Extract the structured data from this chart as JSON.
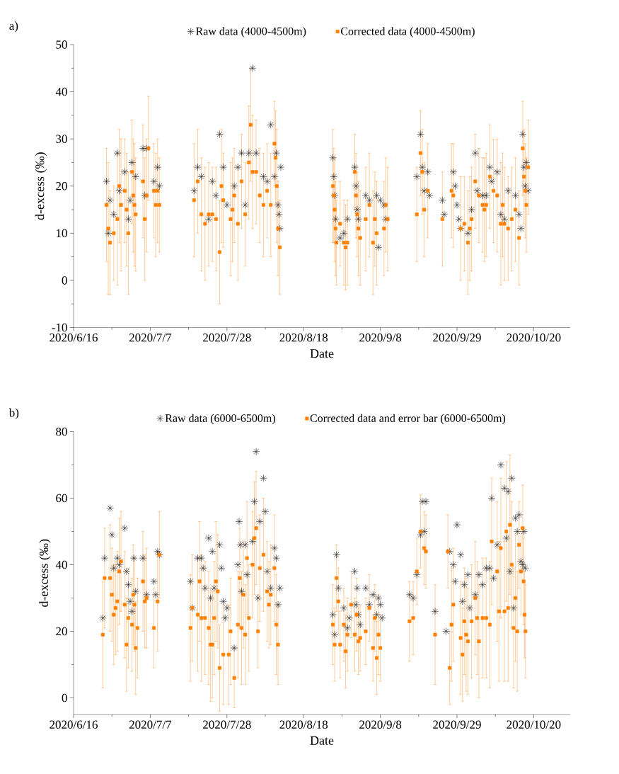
{
  "chart_data": [
    {
      "type": "scatter",
      "title": "a)",
      "xlabel": "Date",
      "ylabel": "d-excess (‰)",
      "legend": "top",
      "xlim": [
        "2020-06-16",
        "2020-10-30"
      ],
      "xticks": [
        {
          "value": "2020-06-16",
          "label": "2020/6/16"
        },
        {
          "value": "2020-07-07",
          "label": "2020/7/7"
        },
        {
          "value": "2020-07-28",
          "label": "2020/7/28"
        },
        {
          "value": "2020-08-18",
          "label": "2020/8/18"
        },
        {
          "value": "2020-09-08",
          "label": "2020/9/8"
        },
        {
          "value": "2020-09-29",
          "label": "2020/9/29"
        },
        {
          "value": "2020-10-20",
          "label": "2020/10/20"
        }
      ],
      "ylim": [
        -10,
        50
      ],
      "yticks": [
        -10,
        0,
        10,
        20,
        30,
        40,
        50
      ],
      "series": [
        {
          "name": "Raw data (4000-4500m)",
          "color": "#1a1a1a",
          "marker": "cross",
          "x": [
            "2020-06-25",
            "2020-06-25T12:00",
            "2020-06-26",
            "2020-06-27",
            "2020-06-28",
            "2020-06-28T12:00",
            "2020-06-30",
            "2020-07-01",
            "2020-07-01T12:00",
            "2020-07-02",
            "2020-07-03",
            "2020-07-05",
            "2020-07-05T12:00",
            "2020-07-06",
            "2020-07-08",
            "2020-07-09",
            "2020-07-09T12:00",
            "2020-07-19",
            "2020-07-20",
            "2020-07-21",
            "2020-07-23",
            "2020-07-24",
            "2020-07-25",
            "2020-07-26",
            "2020-07-27",
            "2020-07-28",
            "2020-07-30",
            "2020-07-31",
            "2020-08-01",
            "2020-08-02",
            "2020-08-03",
            "2020-08-04",
            "2020-08-05",
            "2020-08-07",
            "2020-08-08",
            "2020-08-09",
            "2020-08-10",
            "2020-08-10T12:00",
            "2020-08-11",
            "2020-08-11T06:00",
            "2020-08-11T12:00",
            "2020-08-11T18:00",
            "2020-08-26",
            "2020-08-26T06:00",
            "2020-08-26T12:00",
            "2020-08-26T18:00",
            "2020-08-28",
            "2020-08-29",
            "2020-08-30",
            "2020-09-01",
            "2020-09-01T08:00",
            "2020-09-01T16:00",
            "2020-09-02",
            "2020-09-04",
            "2020-09-05",
            "2020-09-07",
            "2020-09-07T12:00",
            "2020-09-08",
            "2020-09-09",
            "2020-09-09T12:00",
            "2020-09-18",
            "2020-09-19",
            "2020-09-19T12:00",
            "2020-09-20",
            "2020-09-21",
            "2020-09-21T12:00",
            "2020-09-25",
            "2020-09-25T12:00",
            "2020-09-28",
            "2020-09-28T12:00",
            "2020-09-29",
            "2020-09-29T12:00",
            "2020-09-30",
            "2020-10-02",
            "2020-10-03",
            "2020-10-04",
            "2020-10-04T12:00",
            "2020-10-06",
            "2020-10-07",
            "2020-10-08",
            "2020-10-08T12:00",
            "2020-10-10",
            "2020-10-11",
            "2020-10-12",
            "2020-10-13",
            "2020-10-15",
            "2020-10-16",
            "2020-10-16T12:00",
            "2020-10-17",
            "2020-10-17T08:00",
            "2020-10-17T16:00",
            "2020-10-18",
            "2020-10-18T12:00"
          ],
          "values": [
            21,
            10,
            17,
            14,
            27,
            19,
            23,
            13,
            17,
            25,
            22,
            28,
            18,
            28,
            21,
            24,
            20,
            19,
            24,
            22,
            13,
            21,
            18,
            31,
            24,
            16,
            20,
            24,
            27,
            16,
            27,
            45,
            27,
            22,
            21,
            33,
            22,
            27,
            16,
            14,
            11,
            24,
            26,
            22,
            18,
            13,
            9,
            10,
            13,
            24,
            20,
            15,
            13,
            18,
            17,
            18,
            7,
            17,
            16,
            13,
            22,
            31,
            24,
            19,
            23,
            18,
            17,
            14,
            23,
            20,
            16,
            13,
            11,
            10,
            15,
            27,
            19,
            18,
            18,
            24,
            21,
            23,
            14,
            13,
            19,
            18,
            14,
            11,
            31,
            24,
            20,
            25,
            19
          ]
        },
        {
          "name": "Corrected data (4000-4500m)",
          "color": "#ff7f00",
          "marker": "square",
          "x": [
            "2020-06-25",
            "2020-06-25T12:00",
            "2020-06-26",
            "2020-06-27",
            "2020-06-28",
            "2020-06-28T12:00",
            "2020-06-29",
            "2020-06-30",
            "2020-06-30T12:00",
            "2020-07-01",
            "2020-07-02",
            "2020-07-02T08:00",
            "2020-07-02T16:00",
            "2020-07-03",
            "2020-07-05",
            "2020-07-05T12:00",
            "2020-07-06",
            "2020-07-06T12:00",
            "2020-07-08",
            "2020-07-08T12:00",
            "2020-07-09",
            "2020-07-09T12:00",
            "2020-07-19",
            "2020-07-20",
            "2020-07-21",
            "2020-07-22",
            "2020-07-23",
            "2020-07-24",
            "2020-07-25",
            "2020-07-26",
            "2020-07-26T12:00",
            "2020-07-27",
            "2020-07-29",
            "2020-07-29T12:00",
            "2020-07-30",
            "2020-07-31",
            "2020-08-01",
            "2020-08-02",
            "2020-08-03",
            "2020-08-03T12:00",
            "2020-08-04",
            "2020-08-05",
            "2020-08-06",
            "2020-08-07",
            "2020-08-08",
            "2020-08-09",
            "2020-08-10",
            "2020-08-10T08:00",
            "2020-08-10T16:00",
            "2020-08-11",
            "2020-08-11T12:00",
            "2020-08-26",
            "2020-08-26T06:00",
            "2020-08-26T12:00",
            "2020-08-26T18:00",
            "2020-08-27",
            "2020-08-28",
            "2020-08-29",
            "2020-08-29T12:00",
            "2020-08-30",
            "2020-09-01",
            "2020-09-01T08:00",
            "2020-09-01T16:00",
            "2020-09-02",
            "2020-09-02T12:00",
            "2020-09-04",
            "2020-09-05",
            "2020-09-06",
            "2020-09-06T12:00",
            "2020-09-07",
            "2020-09-09",
            "2020-09-09T12:00",
            "2020-09-10",
            "2020-09-18",
            "2020-09-19",
            "2020-09-19T12:00",
            "2020-09-20",
            "2020-09-21",
            "2020-09-25",
            "2020-09-27T12:00",
            "2020-09-28",
            "2020-09-30",
            "2020-10-01",
            "2020-10-02",
            "2020-10-02T12:00",
            "2020-10-03",
            "2020-10-04",
            "2020-10-05",
            "2020-10-06",
            "2020-10-06T12:00",
            "2020-10-07",
            "2020-10-08",
            "2020-10-09",
            "2020-10-10",
            "2020-10-11",
            "2020-10-11T12:00",
            "2020-10-12",
            "2020-10-13",
            "2020-10-14",
            "2020-10-15",
            "2020-10-16",
            "2020-10-17",
            "2020-10-17T08:00",
            "2020-10-17T16:00",
            "2020-10-18",
            "2020-10-18T12:00"
          ],
          "values": [
            16,
            11,
            8,
            10,
            13,
            20,
            16,
            19,
            15,
            10,
            23,
            18,
            16,
            14,
            21,
            13,
            18,
            28,
            19,
            16,
            19,
            16,
            17,
            21,
            14,
            12,
            14,
            14,
            13,
            6,
            20,
            17,
            13,
            15,
            18,
            12,
            21,
            14,
            25,
            33,
            23,
            23,
            18,
            16,
            19,
            16,
            29,
            26,
            20,
            11,
            7,
            20,
            18,
            15,
            11,
            8,
            12,
            8,
            7,
            8,
            23,
            18,
            14,
            11,
            9,
            13,
            16,
            8,
            13,
            10,
            11,
            16,
            13,
            14,
            27,
            23,
            15,
            19,
            13,
            19,
            18,
            11,
            12,
            8,
            11,
            13,
            21,
            18,
            16,
            15,
            16,
            22,
            19,
            18,
            12,
            16,
            12,
            11,
            13,
            15,
            9,
            28,
            22,
            19,
            16,
            24
          ],
          "errors": [
            12,
            14,
            11,
            10,
            14,
            12,
            14,
            11,
            12,
            13,
            11,
            12,
            13,
            12,
            12,
            13,
            12,
            11,
            10,
            11,
            11,
            10,
            12,
            11,
            12,
            12,
            11,
            10,
            11,
            11,
            12,
            10,
            12,
            11,
            10,
            12,
            10,
            11,
            12,
            12,
            12,
            11,
            10,
            11,
            10,
            11,
            9,
            10,
            12,
            10,
            10,
            12,
            10,
            11,
            10,
            9,
            9,
            9,
            9,
            9,
            8,
            9,
            9,
            10,
            10,
            11,
            11,
            11,
            10,
            11,
            10,
            10,
            11,
            10,
            9,
            9,
            10,
            10,
            10,
            10,
            11,
            11,
            10,
            11,
            11,
            11,
            10,
            10,
            10,
            11,
            11,
            11,
            11,
            12,
            13,
            11,
            12,
            11,
            11,
            11,
            10,
            10,
            10,
            10,
            10,
            10
          ]
        }
      ]
    },
    {
      "type": "scatter",
      "title": "b)",
      "xlabel": "Date",
      "ylabel": "d-excess (‰)",
      "legend": "top",
      "xlim": [
        "2020-06-16",
        "2020-10-30"
      ],
      "xticks": [
        {
          "value": "2020-06-16",
          "label": "2020/6/16"
        },
        {
          "value": "2020-07-07",
          "label": "2020/7/7"
        },
        {
          "value": "2020-07-28",
          "label": "2020/7/28"
        },
        {
          "value": "2020-08-18",
          "label": "2020/8/18"
        },
        {
          "value": "2020-09-08",
          "label": "2020/9/8"
        },
        {
          "value": "2020-09-29",
          "label": "2020/9/29"
        },
        {
          "value": "2020-10-20",
          "label": "2020/10/20"
        }
      ],
      "ylim": [
        -5,
        80
      ],
      "yticks": [
        0,
        20,
        40,
        60,
        80
      ],
      "series": [
        {
          "name": "Raw data (6000-6500m)",
          "color": "#1a1a1a",
          "marker": "cross",
          "x": [
            "2020-06-24",
            "2020-06-24T12:00",
            "2020-06-26",
            "2020-06-26T12:00",
            "2020-06-27",
            "2020-06-28",
            "2020-06-28T12:00",
            "2020-06-30",
            "2020-06-30T12:00",
            "2020-07-01",
            "2020-07-01T12:00",
            "2020-07-02",
            "2020-07-02T12:00",
            "2020-07-03",
            "2020-07-05",
            "2020-07-06",
            "2020-07-08",
            "2020-07-08T12:00",
            "2020-07-09",
            "2020-07-09T12:00",
            "2020-07-18",
            "2020-07-18T12:00",
            "2020-07-20",
            "2020-07-21",
            "2020-07-21T12:00",
            "2020-07-22",
            "2020-07-23",
            "2020-07-23T12:00",
            "2020-07-24",
            "2020-07-24T12:00",
            "2020-07-26",
            "2020-07-26T12:00",
            "2020-07-27",
            "2020-07-27T12:00",
            "2020-07-28",
            "2020-07-30",
            "2020-07-31",
            "2020-07-31T08:00",
            "2020-07-31T16:00",
            "2020-08-01",
            "2020-08-02",
            "2020-08-02T12:00",
            "2020-08-04",
            "2020-08-04T12:00",
            "2020-08-05",
            "2020-08-05T12:00",
            "2020-08-06",
            "2020-08-07",
            "2020-08-07T12:00",
            "2020-08-08",
            "2020-08-09",
            "2020-08-10",
            "2020-08-10T12:00",
            "2020-08-11",
            "2020-08-11T12:00",
            "2020-08-26",
            "2020-08-26T12:00",
            "2020-08-27",
            "2020-08-27T12:00",
            "2020-08-29",
            "2020-08-30",
            "2020-08-30T12:00",
            "2020-09-01",
            "2020-09-01T08:00",
            "2020-09-01T16:00",
            "2020-09-02",
            "2020-09-02T12:00",
            "2020-09-04",
            "2020-09-05",
            "2020-09-06",
            "2020-09-07",
            "2020-09-07T12:00",
            "2020-09-08",
            "2020-09-08T12:00",
            "2020-09-16",
            "2020-09-17",
            "2020-09-18",
            "2020-09-19",
            "2020-09-19T12:00",
            "2020-09-20",
            "2020-09-20T12:00",
            "2020-09-23",
            "2020-09-26",
            "2020-09-27",
            "2020-09-28",
            "2020-09-28T12:00",
            "2020-09-29",
            "2020-09-30",
            "2020-09-30T12:00",
            "2020-10-01",
            "2020-10-02",
            "2020-10-02T12:00",
            "2020-10-04",
            "2020-10-05",
            "2020-10-06",
            "2020-10-07",
            "2020-10-08",
            "2020-10-08T12:00",
            "2020-10-09",
            "2020-10-10",
            "2020-10-11",
            "2020-10-12",
            "2020-10-12T12:00",
            "2020-10-13",
            "2020-10-13T12:00",
            "2020-10-14",
            "2020-10-14T12:00",
            "2020-10-15",
            "2020-10-15T12:00",
            "2020-10-16",
            "2020-10-16T12:00",
            "2020-10-17",
            "2020-10-17T08:00",
            "2020-10-17T16:00"
          ],
          "values": [
            24,
            42,
            57,
            49,
            39,
            42,
            40,
            51,
            38,
            34,
            29,
            26,
            42,
            32,
            42,
            31,
            35,
            31,
            44,
            43,
            35,
            27,
            42,
            42,
            39,
            33,
            48,
            30,
            44,
            33,
            46,
            39,
            29,
            24,
            27,
            15,
            40,
            53,
            46,
            32,
            46,
            37,
            47,
            59,
            74,
            30,
            53,
            66,
            56,
            38,
            33,
            45,
            42,
            28,
            33,
            25,
            19,
            43,
            33,
            27,
            21,
            24,
            38,
            28,
            33,
            25,
            22,
            33,
            28,
            31,
            25,
            30,
            28,
            24,
            31,
            30,
            37,
            49,
            59,
            50,
            59,
            26,
            20,
            44,
            40,
            35,
            52,
            43,
            29,
            34,
            37,
            27,
            31,
            37,
            34,
            39,
            39,
            60,
            36,
            46,
            70,
            63,
            48,
            62,
            38,
            66,
            27,
            54,
            50,
            55,
            41,
            40,
            50,
            39
          ]
        },
        {
          "name": "Corrected data and error bar (6000-6500m)",
          "color": "#ff7f00",
          "marker": "square",
          "x": [
            "2020-06-24",
            "2020-06-24T12:00",
            "2020-06-26",
            "2020-06-26T12:00",
            "2020-06-27",
            "2020-06-27T12:00",
            "2020-06-28",
            "2020-06-28T12:00",
            "2020-06-29",
            "2020-06-30",
            "2020-06-30T12:00",
            "2020-07-01",
            "2020-07-02",
            "2020-07-02T08:00",
            "2020-07-02T16:00",
            "2020-07-03",
            "2020-07-03T12:00",
            "2020-07-05",
            "2020-07-05T12:00",
            "2020-07-06",
            "2020-07-08",
            "2020-07-09",
            "2020-07-09T12:00",
            "2020-07-18",
            "2020-07-18T12:00",
            "2020-07-20",
            "2020-07-20T12:00",
            "2020-07-21",
            "2020-07-22",
            "2020-07-23",
            "2020-07-23T12:00",
            "2020-07-24",
            "2020-07-24T12:00",
            "2020-07-25",
            "2020-07-25T12:00",
            "2020-07-26",
            "2020-07-27",
            "2020-07-28T12:00",
            "2020-07-29",
            "2020-07-30",
            "2020-07-31",
            "2020-07-31T12:00",
            "2020-08-01",
            "2020-08-01T12:00",
            "2020-08-02",
            "2020-08-02T12:00",
            "2020-08-03",
            "2020-08-04",
            "2020-08-04T12:00",
            "2020-08-05",
            "2020-08-05T12:00",
            "2020-08-06",
            "2020-08-07",
            "2020-08-08",
            "2020-08-08T12:00",
            "2020-08-09",
            "2020-08-10",
            "2020-08-10T12:00",
            "2020-08-11",
            "2020-08-26",
            "2020-08-26T12:00",
            "2020-08-27",
            "2020-08-27T12:00",
            "2020-08-28",
            "2020-08-29",
            "2020-08-29T12:00",
            "2020-08-30",
            "2020-08-31",
            "2020-09-01",
            "2020-09-01T12:00",
            "2020-09-02",
            "2020-09-02T12:00",
            "2020-09-04",
            "2020-09-05",
            "2020-09-06",
            "2020-09-06T12:00",
            "2020-09-07",
            "2020-09-07T12:00",
            "2020-09-08",
            "2020-09-16",
            "2020-09-17",
            "2020-09-18",
            "2020-09-19",
            "2020-09-20",
            "2020-09-20T12:00",
            "2020-09-23",
            "2020-09-26T12:00",
            "2020-09-27",
            "2020-09-27T12:00",
            "2020-09-28",
            "2020-09-30",
            "2020-09-30T12:00",
            "2020-10-01",
            "2020-10-01T12:00",
            "2020-10-02",
            "2020-10-03",
            "2020-10-04",
            "2020-10-04T12:00",
            "2020-10-05",
            "2020-10-06",
            "2020-10-07",
            "2020-10-08",
            "2020-10-08T12:00",
            "2020-10-10",
            "2020-10-10T12:00",
            "2020-10-11",
            "2020-10-12",
            "2020-10-12T12:00",
            "2020-10-13",
            "2020-10-13T12:00",
            "2020-10-14",
            "2020-10-14T12:00",
            "2020-10-15",
            "2020-10-15T12:00",
            "2020-10-16",
            "2020-10-16T12:00",
            "2020-10-17",
            "2020-10-17T06:00",
            "2020-10-17T12:00",
            "2020-10-17T18:00"
          ],
          "values": [
            19,
            36,
            36,
            31,
            25,
            27,
            29,
            38,
            41,
            28,
            16,
            24,
            22,
            31,
            28,
            15,
            21,
            35,
            29,
            30,
            21,
            29,
            43,
            21,
            27,
            25,
            35,
            24,
            24,
            21,
            16,
            16,
            24,
            35,
            32,
            9,
            13,
            13,
            20,
            6,
            22,
            36,
            21,
            31,
            19,
            42,
            24,
            40,
            48,
            51,
            20,
            39,
            43,
            32,
            28,
            31,
            39,
            22,
            16,
            22,
            16,
            36,
            29,
            16,
            22,
            14,
            19,
            28,
            19,
            25,
            17,
            18,
            20,
            27,
            15,
            24,
            12,
            19,
            15,
            23,
            24,
            38,
            50,
            45,
            44,
            19,
            44,
            9,
            22,
            28,
            18,
            13,
            23,
            19,
            17,
            23,
            30,
            24,
            17,
            24,
            24,
            22,
            47,
            38,
            26,
            45,
            26,
            50,
            27,
            52,
            40,
            21,
            30,
            20,
            46,
            38,
            51,
            35,
            25,
            20
          ],
          "errors": [
            16,
            15,
            16,
            14,
            15,
            14,
            15,
            16,
            15,
            16,
            14,
            15,
            14,
            15,
            14,
            14,
            15,
            15,
            14,
            15,
            12,
            15,
            13,
            16,
            16,
            17,
            18,
            19,
            17,
            17,
            17,
            16,
            17,
            18,
            17,
            13,
            15,
            15,
            16,
            9,
            16,
            15,
            17,
            16,
            15,
            17,
            16,
            16,
            17,
            17,
            11,
            16,
            17,
            15,
            13,
            15,
            16,
            15,
            12,
            12,
            11,
            10,
            10,
            10,
            11,
            11,
            11,
            10,
            11,
            11,
            10,
            10,
            10,
            10,
            10,
            10,
            11,
            12,
            10,
            12,
            11,
            10,
            11,
            11,
            11,
            15,
            11,
            11,
            17,
            17,
            17,
            14,
            16,
            17,
            16,
            17,
            17,
            17,
            17,
            18,
            18,
            19,
            19,
            21,
            21,
            21,
            21,
            21,
            22,
            21,
            19,
            18,
            19,
            18,
            13,
            13,
            13,
            13,
            13,
            14
          ]
        }
      ]
    }
  ]
}
